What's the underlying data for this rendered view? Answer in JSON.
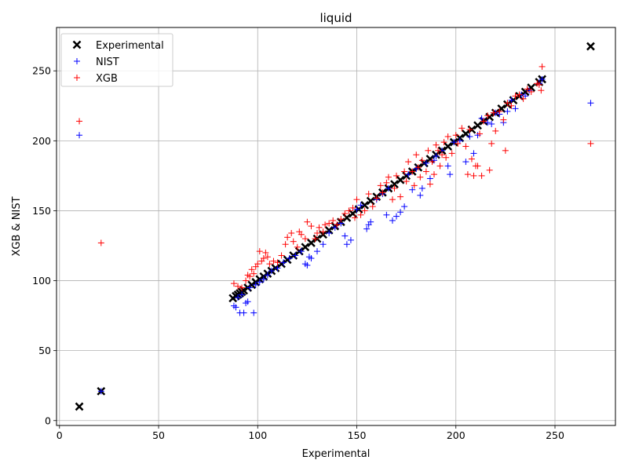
{
  "chart_data": {
    "type": "scatter",
    "title": "liquid",
    "xlabel": "Experimental",
    "ylabel": "XGB & NIST",
    "xlim": [
      -1.5,
      280.5
    ],
    "ylim": [
      -3.5,
      281
    ],
    "xticks": [
      0,
      50,
      100,
      150,
      200,
      250
    ],
    "yticks": [
      0,
      50,
      100,
      150,
      200,
      250
    ],
    "grid": true,
    "legend_position": "top-left",
    "series": [
      {
        "name": "Experimental",
        "marker": "x",
        "color": "#000000",
        "points": [
          [
            10,
            10
          ],
          [
            21,
            21
          ],
          [
            87.5,
            87.5
          ],
          [
            89,
            89
          ],
          [
            90,
            90
          ],
          [
            91,
            91
          ],
          [
            92,
            92
          ],
          [
            93,
            93
          ],
          [
            95,
            95
          ],
          [
            97,
            97
          ],
          [
            99,
            99
          ],
          [
            101,
            101
          ],
          [
            103,
            103
          ],
          [
            105,
            105
          ],
          [
            107,
            107
          ],
          [
            109,
            109
          ],
          [
            112,
            112
          ],
          [
            115,
            115
          ],
          [
            118,
            118
          ],
          [
            121,
            121
          ],
          [
            124,
            124
          ],
          [
            127,
            127
          ],
          [
            130,
            130
          ],
          [
            133,
            133
          ],
          [
            136,
            136
          ],
          [
            139,
            139
          ],
          [
            142,
            142
          ],
          [
            145,
            145
          ],
          [
            148,
            148
          ],
          [
            151,
            151
          ],
          [
            154,
            154
          ],
          [
            157,
            157
          ],
          [
            160,
            160
          ],
          [
            163,
            163
          ],
          [
            166,
            166
          ],
          [
            169,
            169
          ],
          [
            172,
            172
          ],
          [
            175,
            175
          ],
          [
            178,
            178
          ],
          [
            181,
            181
          ],
          [
            184,
            184
          ],
          [
            187,
            187
          ],
          [
            190,
            190
          ],
          [
            193,
            193
          ],
          [
            196,
            196
          ],
          [
            199,
            199
          ],
          [
            202,
            202
          ],
          [
            205,
            205
          ],
          [
            208,
            208
          ],
          [
            211,
            211
          ],
          [
            214,
            214
          ],
          [
            217,
            217
          ],
          [
            220,
            220
          ],
          [
            223,
            223
          ],
          [
            226,
            226
          ],
          [
            229,
            229
          ],
          [
            232,
            232
          ],
          [
            235,
            235
          ],
          [
            238,
            238
          ],
          [
            242,
            242
          ],
          [
            243.5,
            244
          ],
          [
            268,
            267.5
          ]
        ]
      },
      {
        "name": "NIST",
        "marker": "+",
        "color": "#0000ff",
        "points": [
          [
            10,
            204
          ],
          [
            21,
            21
          ],
          [
            88,
            82
          ],
          [
            89,
            81
          ],
          [
            91,
            77
          ],
          [
            93,
            77
          ],
          [
            94,
            84
          ],
          [
            95,
            85
          ],
          [
            98,
            77
          ],
          [
            90,
            88
          ],
          [
            92,
            90
          ],
          [
            96,
            95
          ],
          [
            99,
            97
          ],
          [
            101,
            99
          ],
          [
            103,
            101
          ],
          [
            105,
            104
          ],
          [
            107,
            107
          ],
          [
            110,
            109
          ],
          [
            113,
            113
          ],
          [
            116,
            116
          ],
          [
            119,
            118
          ],
          [
            122,
            121
          ],
          [
            124,
            112
          ],
          [
            125,
            111
          ],
          [
            126,
            117
          ],
          [
            127,
            116
          ],
          [
            130,
            121
          ],
          [
            133,
            126
          ],
          [
            136,
            134
          ],
          [
            139,
            138
          ],
          [
            142,
            141
          ],
          [
            144,
            132
          ],
          [
            145,
            126
          ],
          [
            147,
            129
          ],
          [
            150,
            151
          ],
          [
            152,
            154
          ],
          [
            155,
            137
          ],
          [
            156,
            140
          ],
          [
            157,
            142
          ],
          [
            160,
            158
          ],
          [
            163,
            162
          ],
          [
            165,
            147
          ],
          [
            166,
            166
          ],
          [
            168,
            143
          ],
          [
            170,
            146
          ],
          [
            172,
            149
          ],
          [
            174,
            153
          ],
          [
            176,
            176
          ],
          [
            178,
            165
          ],
          [
            180,
            180
          ],
          [
            182,
            161
          ],
          [
            183,
            166
          ],
          [
            185,
            184
          ],
          [
            187,
            173
          ],
          [
            189,
            186
          ],
          [
            190,
            189
          ],
          [
            193,
            193
          ],
          [
            196,
            182
          ],
          [
            197,
            176
          ],
          [
            199,
            199
          ],
          [
            202,
            200
          ],
          [
            205,
            185
          ],
          [
            207,
            203
          ],
          [
            209,
            191
          ],
          [
            211,
            204
          ],
          [
            213,
            216
          ],
          [
            216,
            213
          ],
          [
            218,
            212
          ],
          [
            220,
            220
          ],
          [
            222,
            219
          ],
          [
            224,
            213
          ],
          [
            226,
            221
          ],
          [
            228,
            229
          ],
          [
            230,
            223
          ],
          [
            233,
            233
          ],
          [
            235,
            232
          ],
          [
            237,
            236
          ],
          [
            242,
            241
          ],
          [
            243.5,
            244
          ],
          [
            268,
            227
          ]
        ]
      },
      {
        "name": "XGB",
        "marker": "+",
        "color": "#ff0000",
        "points": [
          [
            10,
            214
          ],
          [
            21,
            127
          ],
          [
            88,
            98
          ],
          [
            90,
            96
          ],
          [
            92,
            95
          ],
          [
            94,
            100
          ],
          [
            95,
            104
          ],
          [
            96,
            103
          ],
          [
            97,
            108
          ],
          [
            98,
            105
          ],
          [
            99,
            110
          ],
          [
            100,
            112
          ],
          [
            101,
            121
          ],
          [
            102,
            114
          ],
          [
            103,
            116
          ],
          [
            104,
            120
          ],
          [
            105,
            117
          ],
          [
            106,
            112
          ],
          [
            108,
            114
          ],
          [
            110,
            113
          ],
          [
            112,
            118
          ],
          [
            114,
            126
          ],
          [
            115,
            131
          ],
          [
            117,
            134
          ],
          [
            118,
            128
          ],
          [
            120,
            124
          ],
          [
            121,
            135
          ],
          [
            122,
            133
          ],
          [
            124,
            130
          ],
          [
            125,
            142
          ],
          [
            127,
            139
          ],
          [
            129,
            130
          ],
          [
            130,
            134
          ],
          [
            131,
            138
          ],
          [
            133,
            135
          ],
          [
            134,
            140
          ],
          [
            136,
            141
          ],
          [
            138,
            143
          ],
          [
            140,
            140
          ],
          [
            142,
            144
          ],
          [
            144,
            148
          ],
          [
            146,
            150
          ],
          [
            148,
            152
          ],
          [
            149,
            145
          ],
          [
            150,
            158
          ],
          [
            152,
            147
          ],
          [
            154,
            150
          ],
          [
            156,
            162
          ],
          [
            158,
            153
          ],
          [
            160,
            159
          ],
          [
            162,
            168
          ],
          [
            163,
            163
          ],
          [
            165,
            170
          ],
          [
            166,
            174
          ],
          [
            168,
            158
          ],
          [
            169,
            166
          ],
          [
            170,
            175
          ],
          [
            172,
            160
          ],
          [
            174,
            178
          ],
          [
            175,
            171
          ],
          [
            176,
            185
          ],
          [
            178,
            178
          ],
          [
            179,
            168
          ],
          [
            180,
            190
          ],
          [
            181,
            181
          ],
          [
            182,
            174
          ],
          [
            183,
            186
          ],
          [
            185,
            178
          ],
          [
            186,
            193
          ],
          [
            187,
            169
          ],
          [
            188,
            185
          ],
          [
            189,
            176
          ],
          [
            190,
            197
          ],
          [
            191,
            193
          ],
          [
            192,
            182
          ],
          [
            193,
            190
          ],
          [
            194,
            199
          ],
          [
            195,
            188
          ],
          [
            196,
            203
          ],
          [
            198,
            191
          ],
          [
            200,
            204
          ],
          [
            201,
            198
          ],
          [
            203,
            209
          ],
          [
            205,
            196
          ],
          [
            206,
            176
          ],
          [
            207,
            208
          ],
          [
            208,
            187
          ],
          [
            209,
            175
          ],
          [
            210,
            182
          ],
          [
            211,
            182
          ],
          [
            212,
            205
          ],
          [
            213,
            175
          ],
          [
            214,
            214
          ],
          [
            216,
            218
          ],
          [
            217,
            179
          ],
          [
            218,
            198
          ],
          [
            219,
            220
          ],
          [
            220,
            207
          ],
          [
            222,
            221
          ],
          [
            224,
            215
          ],
          [
            225,
            193
          ],
          [
            226,
            227
          ],
          [
            228,
            225
          ],
          [
            230,
            232
          ],
          [
            232,
            233
          ],
          [
            234,
            230
          ],
          [
            236,
            237
          ],
          [
            238,
            235
          ],
          [
            241,
            241
          ],
          [
            242,
            240
          ],
          [
            243,
            236
          ],
          [
            243.5,
            253
          ],
          [
            268,
            198
          ]
        ]
      }
    ]
  }
}
